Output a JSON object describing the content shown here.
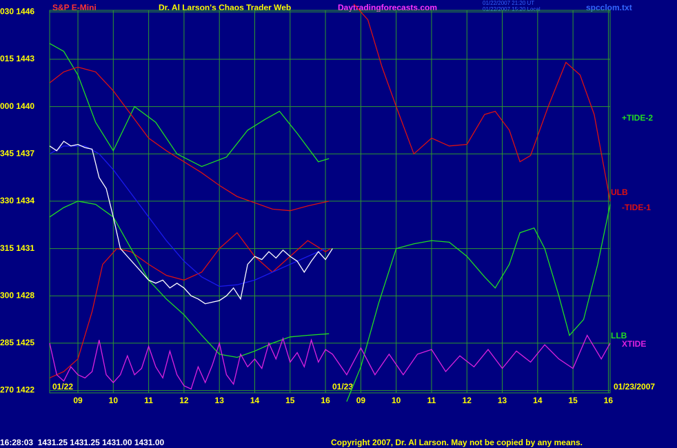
{
  "chart_data": {
    "type": "line",
    "title": "Dr. Al Larson's Chaos Trader Web",
    "symbol": "S&P E-Mini",
    "site": "Daytradingforecasts.com",
    "time_utc": "01/22/2007 21:20 UT",
    "time_local": "01/22/2007 15:20 Local",
    "file": "spcclom.txt",
    "day_labels": [
      "01/22",
      "01/23",
      "01/23/2007"
    ],
    "quote": "16:28:03  1431.25 1431.25 1431.00 1431.00",
    "copyright": "Copyright 2007, Dr. Al Larson. May not be copied by any means.",
    "grid": true,
    "grid_color": "#2e9a2e",
    "background": "#000080",
    "xlim": [
      8.2,
      24.05
    ],
    "xticks": [
      {
        "value": 9,
        "label": "09"
      },
      10,
      11,
      12,
      13,
      14,
      15,
      16,
      {
        "value": 17,
        "label": "09"
      },
      {
        "value": 18,
        "label": "10"
      },
      {
        "value": 19,
        "label": "11"
      },
      {
        "value": 20,
        "label": "12"
      },
      {
        "value": 21,
        "label": "13"
      },
      {
        "value": 22,
        "label": "14"
      },
      {
        "value": 23,
        "label": "15"
      },
      {
        "value": 24,
        "label": "16"
      }
    ],
    "ylim": [
      1421.85,
      1446.1
    ],
    "yticks": [
      {
        "value": 1446,
        "label": "030 1446"
      },
      {
        "value": 1443,
        "label": "015 1443"
      },
      {
        "value": 1440,
        "label": "000 1440"
      },
      {
        "value": 1437,
        "label": "345 1437"
      },
      {
        "value": 1434,
        "label": "330 1434"
      },
      {
        "value": 1431,
        "label": "315 1431"
      },
      {
        "value": 1428,
        "label": "300 1428"
      },
      {
        "value": 1425,
        "label": "285 1425"
      },
      {
        "value": 1422,
        "label": "270 1422"
      }
    ],
    "series": [
      {
        "name": "+TIDE-2",
        "color": "#22dd22",
        "x": [
          8.2,
          8.6,
          9.0,
          9.5,
          10.0,
          10.6,
          11.2,
          11.8,
          12.5,
          13.2,
          13.8,
          14.3,
          14.7,
          15.2,
          15.8,
          16.1,
          16.2,
          16.6,
          17.0,
          17.5,
          18.0,
          18.5,
          19.0,
          19.5,
          20.0,
          20.5,
          20.8,
          21.2,
          21.5,
          21.9,
          22.2,
          22.6,
          22.9,
          23.3,
          23.7,
          24.05
        ],
        "values": [
          1444,
          1443.5,
          1442,
          1439,
          1437.2,
          1440,
          1439,
          1437,
          1436.2,
          1436.8,
          1438.5,
          1439.2,
          1439.7,
          1438.3,
          1436.5,
          1436.7,
          null,
          1421.3,
          1423.5,
          1427.5,
          1431,
          1431.3,
          1431.5,
          1431.4,
          1430.5,
          1429.2,
          1428.5,
          1430,
          1432,
          1432.3,
          1431,
          1428,
          1425.5,
          1426.5,
          1430,
          1433.8
        ]
      },
      {
        "name": "ULB",
        "color": "#dd1111",
        "x": [
          8.2,
          8.6,
          9.0,
          9.5,
          10.0,
          10.5,
          11.0,
          11.5,
          12.0,
          12.5,
          13.0,
          13.5,
          14.0,
          14.5,
          15.0,
          15.5,
          16.1
        ],
        "values": [
          1441.5,
          1442.2,
          1442.5,
          1442.2,
          1441,
          1439.5,
          1438,
          1437.2,
          1436.5,
          1435.8,
          1435,
          1434.3,
          1433.9,
          1433.5,
          1433.4,
          1433.7,
          1434
        ]
      },
      {
        "name": "-TIDE-1",
        "color": "#dd1111",
        "x": [
          8.2,
          8.6,
          9.0,
          9.4,
          9.7,
          10.1,
          10.5,
          11.0,
          11.5,
          12.0,
          12.5,
          13.0,
          13.5,
          14.0,
          14.5,
          15.0,
          15.5,
          16.0,
          16.15,
          16.2,
          16.8,
          17.2,
          17.6,
          18.0,
          18.5,
          19.0,
          19.5,
          20.0,
          20.5,
          20.8,
          21.2,
          21.5,
          21.8,
          22.3,
          22.8,
          23.2,
          23.6,
          24.05
        ],
        "values": [
          1422.8,
          1423.2,
          1424,
          1427,
          1430,
          1431,
          1430.8,
          1430,
          1429.3,
          1429,
          1429.5,
          1431,
          1432,
          1430.5,
          1429.5,
          1430.5,
          1431.5,
          1430.8,
          1431,
          null,
          1446.5,
          1445.5,
          1442.5,
          1440,
          1437,
          1438,
          1437.5,
          1437.6,
          1439.5,
          1439.7,
          1438.5,
          1436.5,
          1436.9,
          1440,
          1442.8,
          1442,
          1439.5,
          1434
        ]
      },
      {
        "name": "LLB",
        "color": "#22dd22",
        "x": [
          8.2,
          8.6,
          9.0,
          9.5,
          10.0,
          10.5,
          11.0,
          11.5,
          12.0,
          12.5,
          13.0,
          13.5,
          14.0,
          14.5,
          15.0,
          15.5,
          16.1
        ],
        "values": [
          1433,
          1433.6,
          1434,
          1433.8,
          1433,
          1431,
          1429,
          1427.8,
          1426.8,
          1425.5,
          1424.3,
          1424.1,
          1424.5,
          1425,
          1425.4,
          1425.5,
          1425.6
        ]
      },
      {
        "name": "XTIDE",
        "color": "#dd22dd",
        "x": [
          8.2,
          8.4,
          8.6,
          8.8,
          9.0,
          9.2,
          9.4,
          9.6,
          9.8,
          10.0,
          10.2,
          10.4,
          10.6,
          10.8,
          11.0,
          11.2,
          11.4,
          11.6,
          11.8,
          12.0,
          12.2,
          12.4,
          12.6,
          12.8,
          13.0,
          13.2,
          13.4,
          13.6,
          13.8,
          14.0,
          14.2,
          14.4,
          14.6,
          14.8,
          15.0,
          15.2,
          15.4,
          15.6,
          15.8,
          16.0,
          16.2,
          16.6,
          17.0,
          17.4,
          17.8,
          18.2,
          18.6,
          19.0,
          19.4,
          19.8,
          20.2,
          20.6,
          21.0,
          21.4,
          21.8,
          22.2,
          22.6,
          23.0,
          23.4,
          23.8,
          24.05
        ],
        "values": [
          1425,
          1423,
          1422.6,
          1423.5,
          1423,
          1422.8,
          1423.2,
          1425.2,
          1423,
          1422.5,
          1423,
          1424.2,
          1423,
          1423.4,
          1424.8,
          1423.5,
          1422.8,
          1424.5,
          1423,
          1422.3,
          1422.1,
          1423.5,
          1422.5,
          1423.6,
          1425,
          1423,
          1422.4,
          1424.3,
          1423.5,
          1424,
          1423.4,
          1425,
          1424,
          1425.3,
          1423.8,
          1424.4,
          1423.5,
          1425.2,
          1423.8,
          1424.6,
          1424.3,
          1423,
          1424.7,
          1423,
          1424.3,
          1423,
          1424.3,
          1424.6,
          1423.2,
          1424.2,
          1423.5,
          1424.6,
          1423.4,
          1424.5,
          1423.8,
          1424.9,
          1424,
          1423.4,
          1425.5,
          1424,
          1425
        ]
      },
      {
        "color": "#1a1aee",
        "x": [
          8.2,
          8.6,
          9.2,
          9.6,
          10.0,
          10.5,
          11.0,
          11.5,
          12.0,
          12.5,
          13.0,
          13.5,
          14.0,
          14.5,
          15.0,
          15.5,
          16.0
        ],
        "values": [
          1437,
          1437.5,
          1437.5,
          1437,
          1436,
          1434.5,
          1433,
          1431.5,
          1430.2,
          1429.2,
          1428.6,
          1428.7,
          1429,
          1429.5,
          1430,
          1430.5,
          1431
        ]
      },
      {
        "color": "#ffffff",
        "x": [
          8.2,
          8.4,
          8.6,
          8.8,
          9.0,
          9.2,
          9.4,
          9.6,
          9.8,
          10.0,
          10.2,
          10.4,
          10.6,
          10.8,
          11.0,
          11.2,
          11.4,
          11.6,
          11.8,
          12.0,
          12.2,
          12.4,
          12.6,
          12.8,
          13.0,
          13.2,
          13.4,
          13.6,
          13.8,
          14.0,
          14.2,
          14.4,
          14.6,
          14.8,
          15.0,
          15.2,
          15.4,
          15.6,
          15.8,
          16.0,
          16.2
        ],
        "values": [
          1437.5,
          1437.2,
          1437.8,
          1437.5,
          1437.6,
          1437.4,
          1437.3,
          1435.5,
          1434.8,
          1433,
          1431,
          1430.5,
          1430,
          1429.5,
          1429,
          1428.8,
          1429,
          1428.5,
          1428.8,
          1428.5,
          1428,
          1427.8,
          1427.5,
          1427.6,
          1427.7,
          1428,
          1428.5,
          1427.8,
          1430,
          1430.5,
          1430.3,
          1430.8,
          1430.4,
          1430.9,
          1430.5,
          1430.2,
          1429.5,
          1430.2,
          1430.8,
          1430.3,
          1431
        ]
      }
    ]
  }
}
